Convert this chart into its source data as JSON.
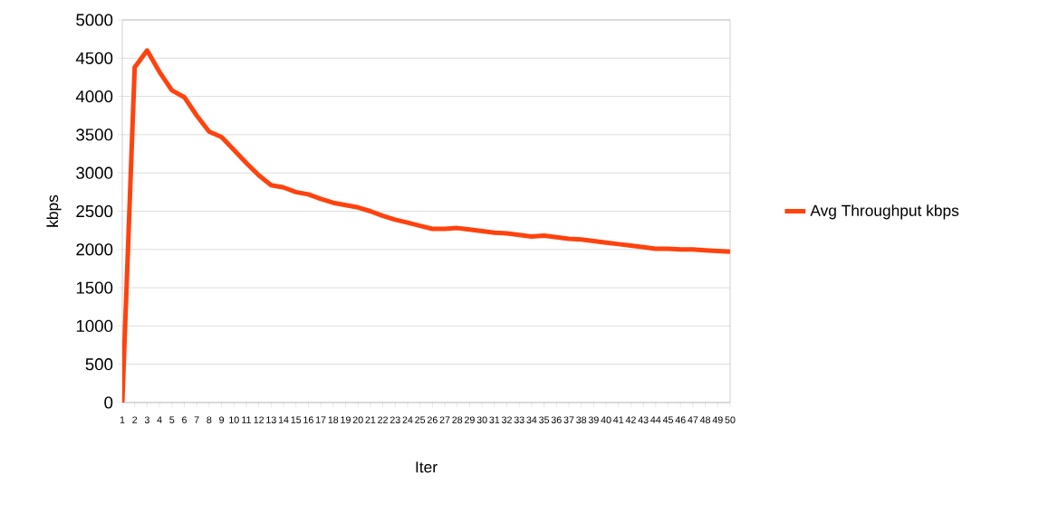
{
  "chart_data": {
    "type": "line",
    "xlabel": "Iter",
    "ylabel": "kbps",
    "categories": [
      "1",
      "2",
      "3",
      "4",
      "5",
      "6",
      "7",
      "8",
      "9",
      "10",
      "11",
      "12",
      "13",
      "14",
      "15",
      "16",
      "17",
      "18",
      "19",
      "20",
      "21",
      "22",
      "23",
      "24",
      "25",
      "26",
      "27",
      "28",
      "29",
      "30",
      "31",
      "32",
      "33",
      "34",
      "35",
      "36",
      "37",
      "38",
      "39",
      "40",
      "41",
      "42",
      "43",
      "44",
      "45",
      "46",
      "47",
      "48",
      "49",
      "50"
    ],
    "series": [
      {
        "name": "Avg Throughput kbps",
        "color": "#ff420e",
        "values": [
          0,
          4380,
          4600,
          4320,
          4080,
          3990,
          3750,
          3540,
          3470,
          3300,
          3130,
          2970,
          2840,
          2810,
          2750,
          2720,
          2660,
          2610,
          2580,
          2550,
          2500,
          2440,
          2390,
          2350,
          2310,
          2270,
          2270,
          2280,
          2260,
          2240,
          2220,
          2210,
          2190,
          2170,
          2180,
          2160,
          2140,
          2130,
          2110,
          2090,
          2070,
          2050,
          2030,
          2010,
          2010,
          2000,
          2000,
          1990,
          1980,
          1970
        ]
      }
    ],
    "ylim": [
      0,
      5000
    ],
    "yticks": [
      0,
      500,
      1000,
      1500,
      2000,
      2500,
      3000,
      3500,
      4000,
      4500,
      5000
    ],
    "grid": "y",
    "legend": "right",
    "marker": "none",
    "line_style": "solid"
  }
}
